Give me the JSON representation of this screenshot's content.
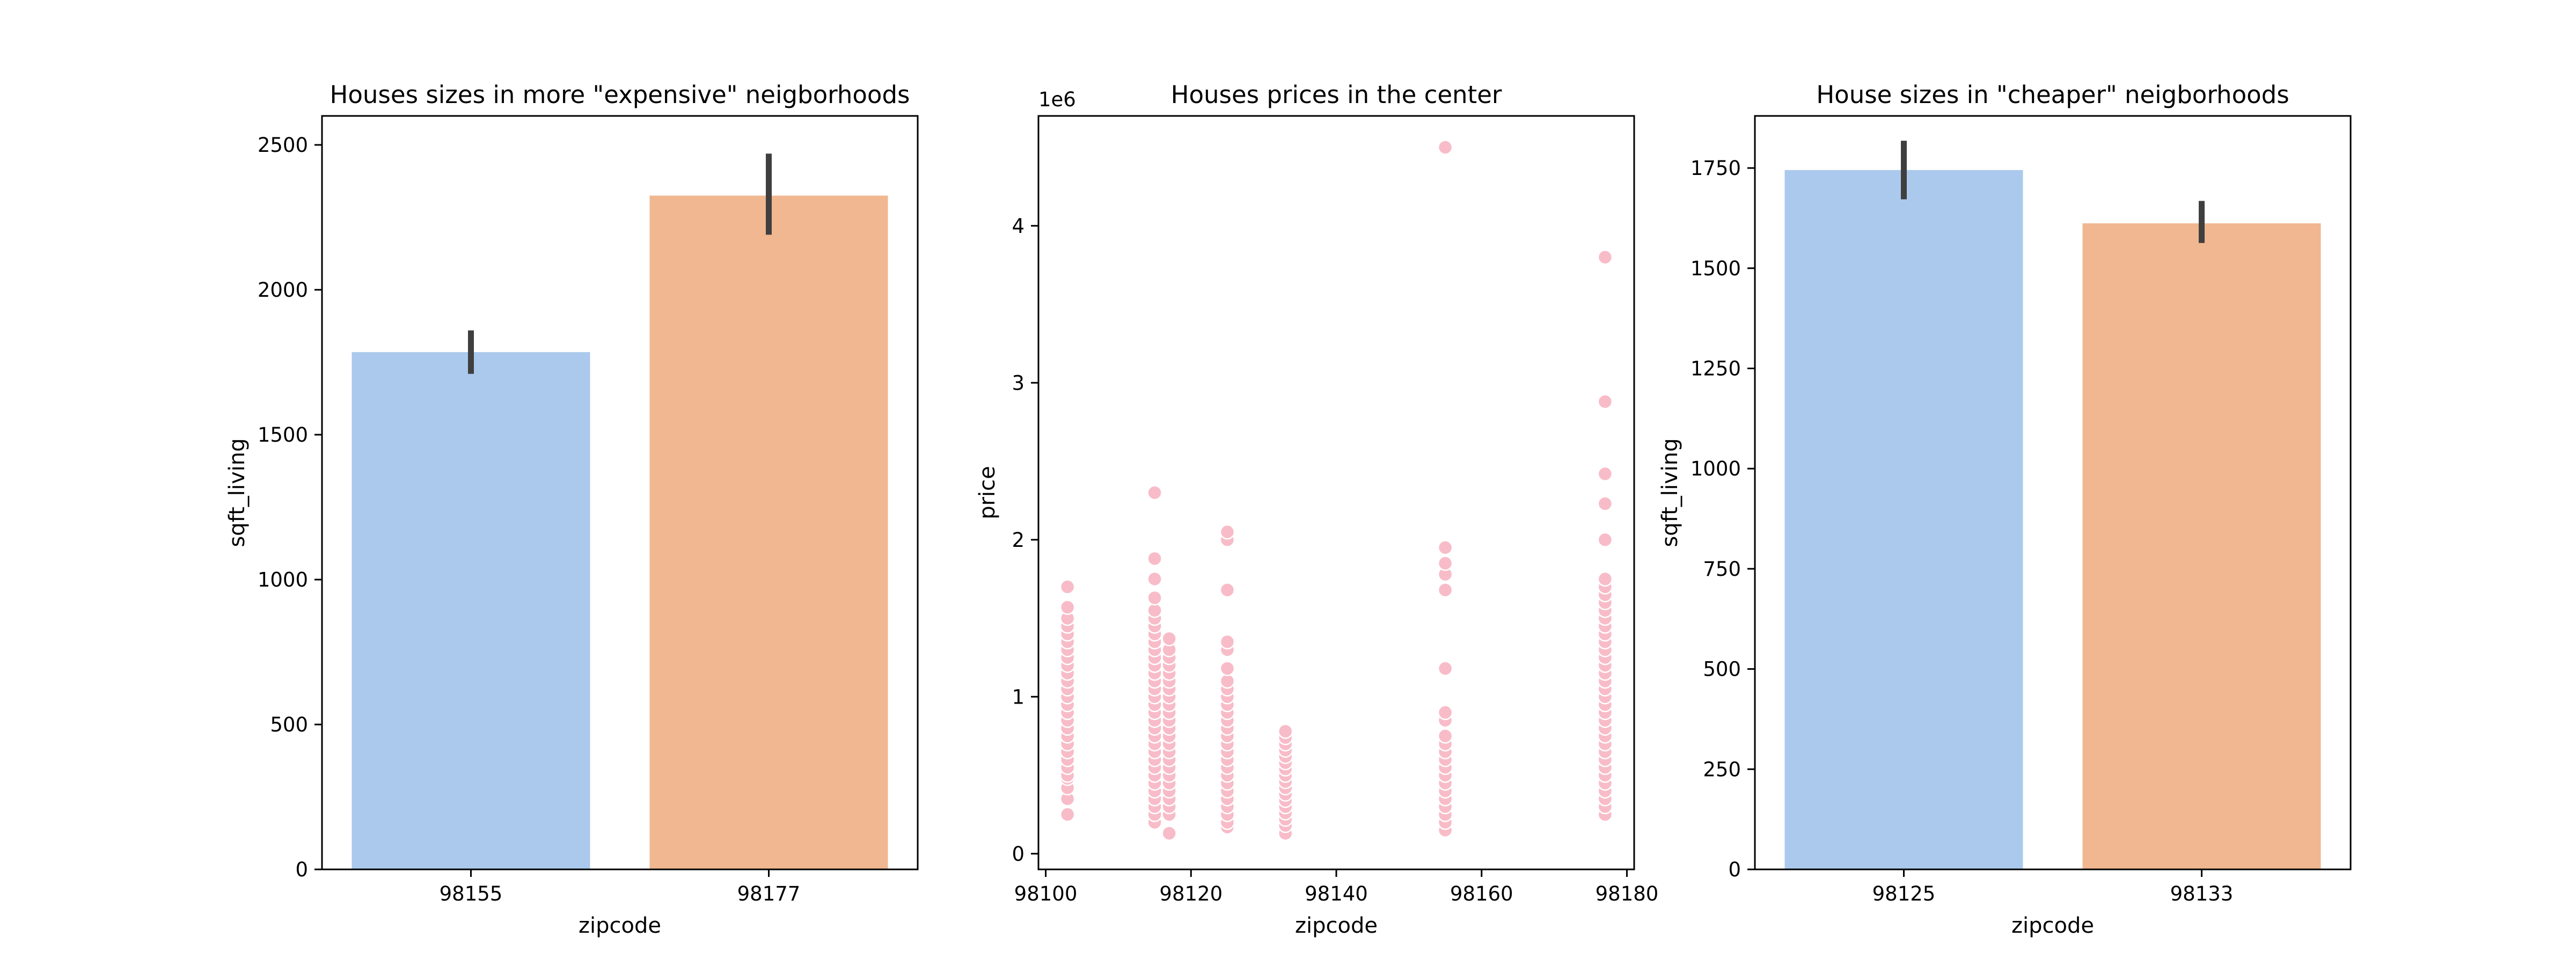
{
  "chart_data": [
    {
      "type": "bar",
      "title": "Houses sizes in more \"expensive\" neigborhoods",
      "xlabel": "zipcode",
      "ylabel": "sqft_living",
      "categories": [
        "98155",
        "98177"
      ],
      "values": [
        1785,
        2325
      ],
      "error": [
        [
          1710,
          1860
        ],
        [
          2190,
          2470
        ]
      ],
      "colors": [
        "#abc9ed",
        "#f0b790"
      ],
      "ylim": [
        0,
        2600
      ],
      "yticks": [
        0,
        500,
        1000,
        1500,
        2000,
        2500
      ],
      "ytick_labels": [
        "0",
        "500",
        "1000",
        "1500",
        "2000",
        "2500"
      ],
      "grid": false
    },
    {
      "type": "scatter",
      "title": "Houses prices in the center",
      "xlabel": "zipcode",
      "ylabel": "price",
      "y_offset_label": "1e6",
      "xlim": [
        98099,
        98181
      ],
      "ylim": [
        -0.1,
        4.7
      ],
      "xticks": [
        98100,
        98120,
        98140,
        98160,
        98180
      ],
      "xtick_labels": [
        "98100",
        "98120",
        "98140",
        "98160",
        "98180"
      ],
      "yticks": [
        0,
        1,
        2,
        3,
        4
      ],
      "ytick_labels": [
        "0",
        "1",
        "2",
        "3",
        "4"
      ],
      "color": "#f8bcc8",
      "grid": false,
      "groups": [
        {
          "x": 98103,
          "prices": [
            0.25,
            0.35,
            0.42,
            0.48,
            0.5,
            0.55,
            0.6,
            0.65,
            0.7,
            0.75,
            0.8,
            0.85,
            0.9,
            0.95,
            1.0,
            1.05,
            1.1,
            1.15,
            1.2,
            1.25,
            1.3,
            1.35,
            1.4,
            1.45,
            1.5,
            1.57,
            1.7
          ]
        },
        {
          "x": 98115,
          "prices": [
            0.2,
            0.25,
            0.3,
            0.35,
            0.4,
            0.45,
            0.5,
            0.55,
            0.6,
            0.65,
            0.7,
            0.75,
            0.8,
            0.85,
            0.9,
            0.95,
            1.0,
            1.05,
            1.1,
            1.15,
            1.2,
            1.25,
            1.3,
            1.35,
            1.4,
            1.45,
            1.5,
            1.55,
            1.63,
            1.75,
            1.88,
            2.3
          ]
        },
        {
          "x": 98117,
          "prices": [
            0.13,
            0.25,
            0.3,
            0.35,
            0.4,
            0.45,
            0.5,
            0.55,
            0.6,
            0.65,
            0.7,
            0.75,
            0.8,
            0.85,
            0.9,
            0.95,
            1.0,
            1.05,
            1.1,
            1.15,
            1.2,
            1.25,
            1.3,
            1.37
          ]
        },
        {
          "x": 98125,
          "prices": [
            0.17,
            0.2,
            0.25,
            0.3,
            0.35,
            0.4,
            0.45,
            0.5,
            0.55,
            0.6,
            0.65,
            0.7,
            0.75,
            0.8,
            0.85,
            0.9,
            0.95,
            1.0,
            1.05,
            1.1,
            1.18,
            1.3,
            1.35,
            1.68,
            2.0,
            2.05
          ]
        },
        {
          "x": 98133,
          "prices": [
            0.13,
            0.18,
            0.22,
            0.26,
            0.3,
            0.34,
            0.38,
            0.42,
            0.46,
            0.5,
            0.54,
            0.58,
            0.62,
            0.66,
            0.7,
            0.74,
            0.78
          ]
        },
        {
          "x": 98155,
          "prices": [
            0.15,
            0.2,
            0.25,
            0.3,
            0.35,
            0.4,
            0.45,
            0.5,
            0.55,
            0.6,
            0.65,
            0.7,
            0.75,
            0.85,
            0.9,
            1.18,
            1.68,
            1.78,
            1.85,
            1.95,
            4.5
          ]
        },
        {
          "x": 98177,
          "prices": [
            0.25,
            0.3,
            0.35,
            0.4,
            0.45,
            0.5,
            0.55,
            0.6,
            0.65,
            0.7,
            0.75,
            0.8,
            0.85,
            0.9,
            0.95,
            1.0,
            1.05,
            1.1,
            1.15,
            1.2,
            1.25,
            1.3,
            1.35,
            1.4,
            1.45,
            1.5,
            1.55,
            1.6,
            1.65,
            1.7,
            1.75,
            2.0,
            2.23,
            2.42,
            2.88,
            3.8
          ]
        }
      ]
    },
    {
      "type": "bar",
      "title": "House sizes in \"cheaper\" neigborhoods",
      "xlabel": "zipcode",
      "ylabel": "sqft_living",
      "categories": [
        "98125",
        "98133"
      ],
      "values": [
        1745,
        1612
      ],
      "error": [
        [
          1672,
          1818
        ],
        [
          1563,
          1668
        ]
      ],
      "colors": [
        "#abc9ed",
        "#f0b790"
      ],
      "ylim": [
        0,
        1880
      ],
      "yticks": [
        0,
        250,
        500,
        750,
        1000,
        1250,
        1500,
        1750
      ],
      "ytick_labels": [
        "0",
        "250",
        "500",
        "750",
        "1000",
        "1250",
        "1500",
        "1750"
      ],
      "grid": false
    }
  ]
}
